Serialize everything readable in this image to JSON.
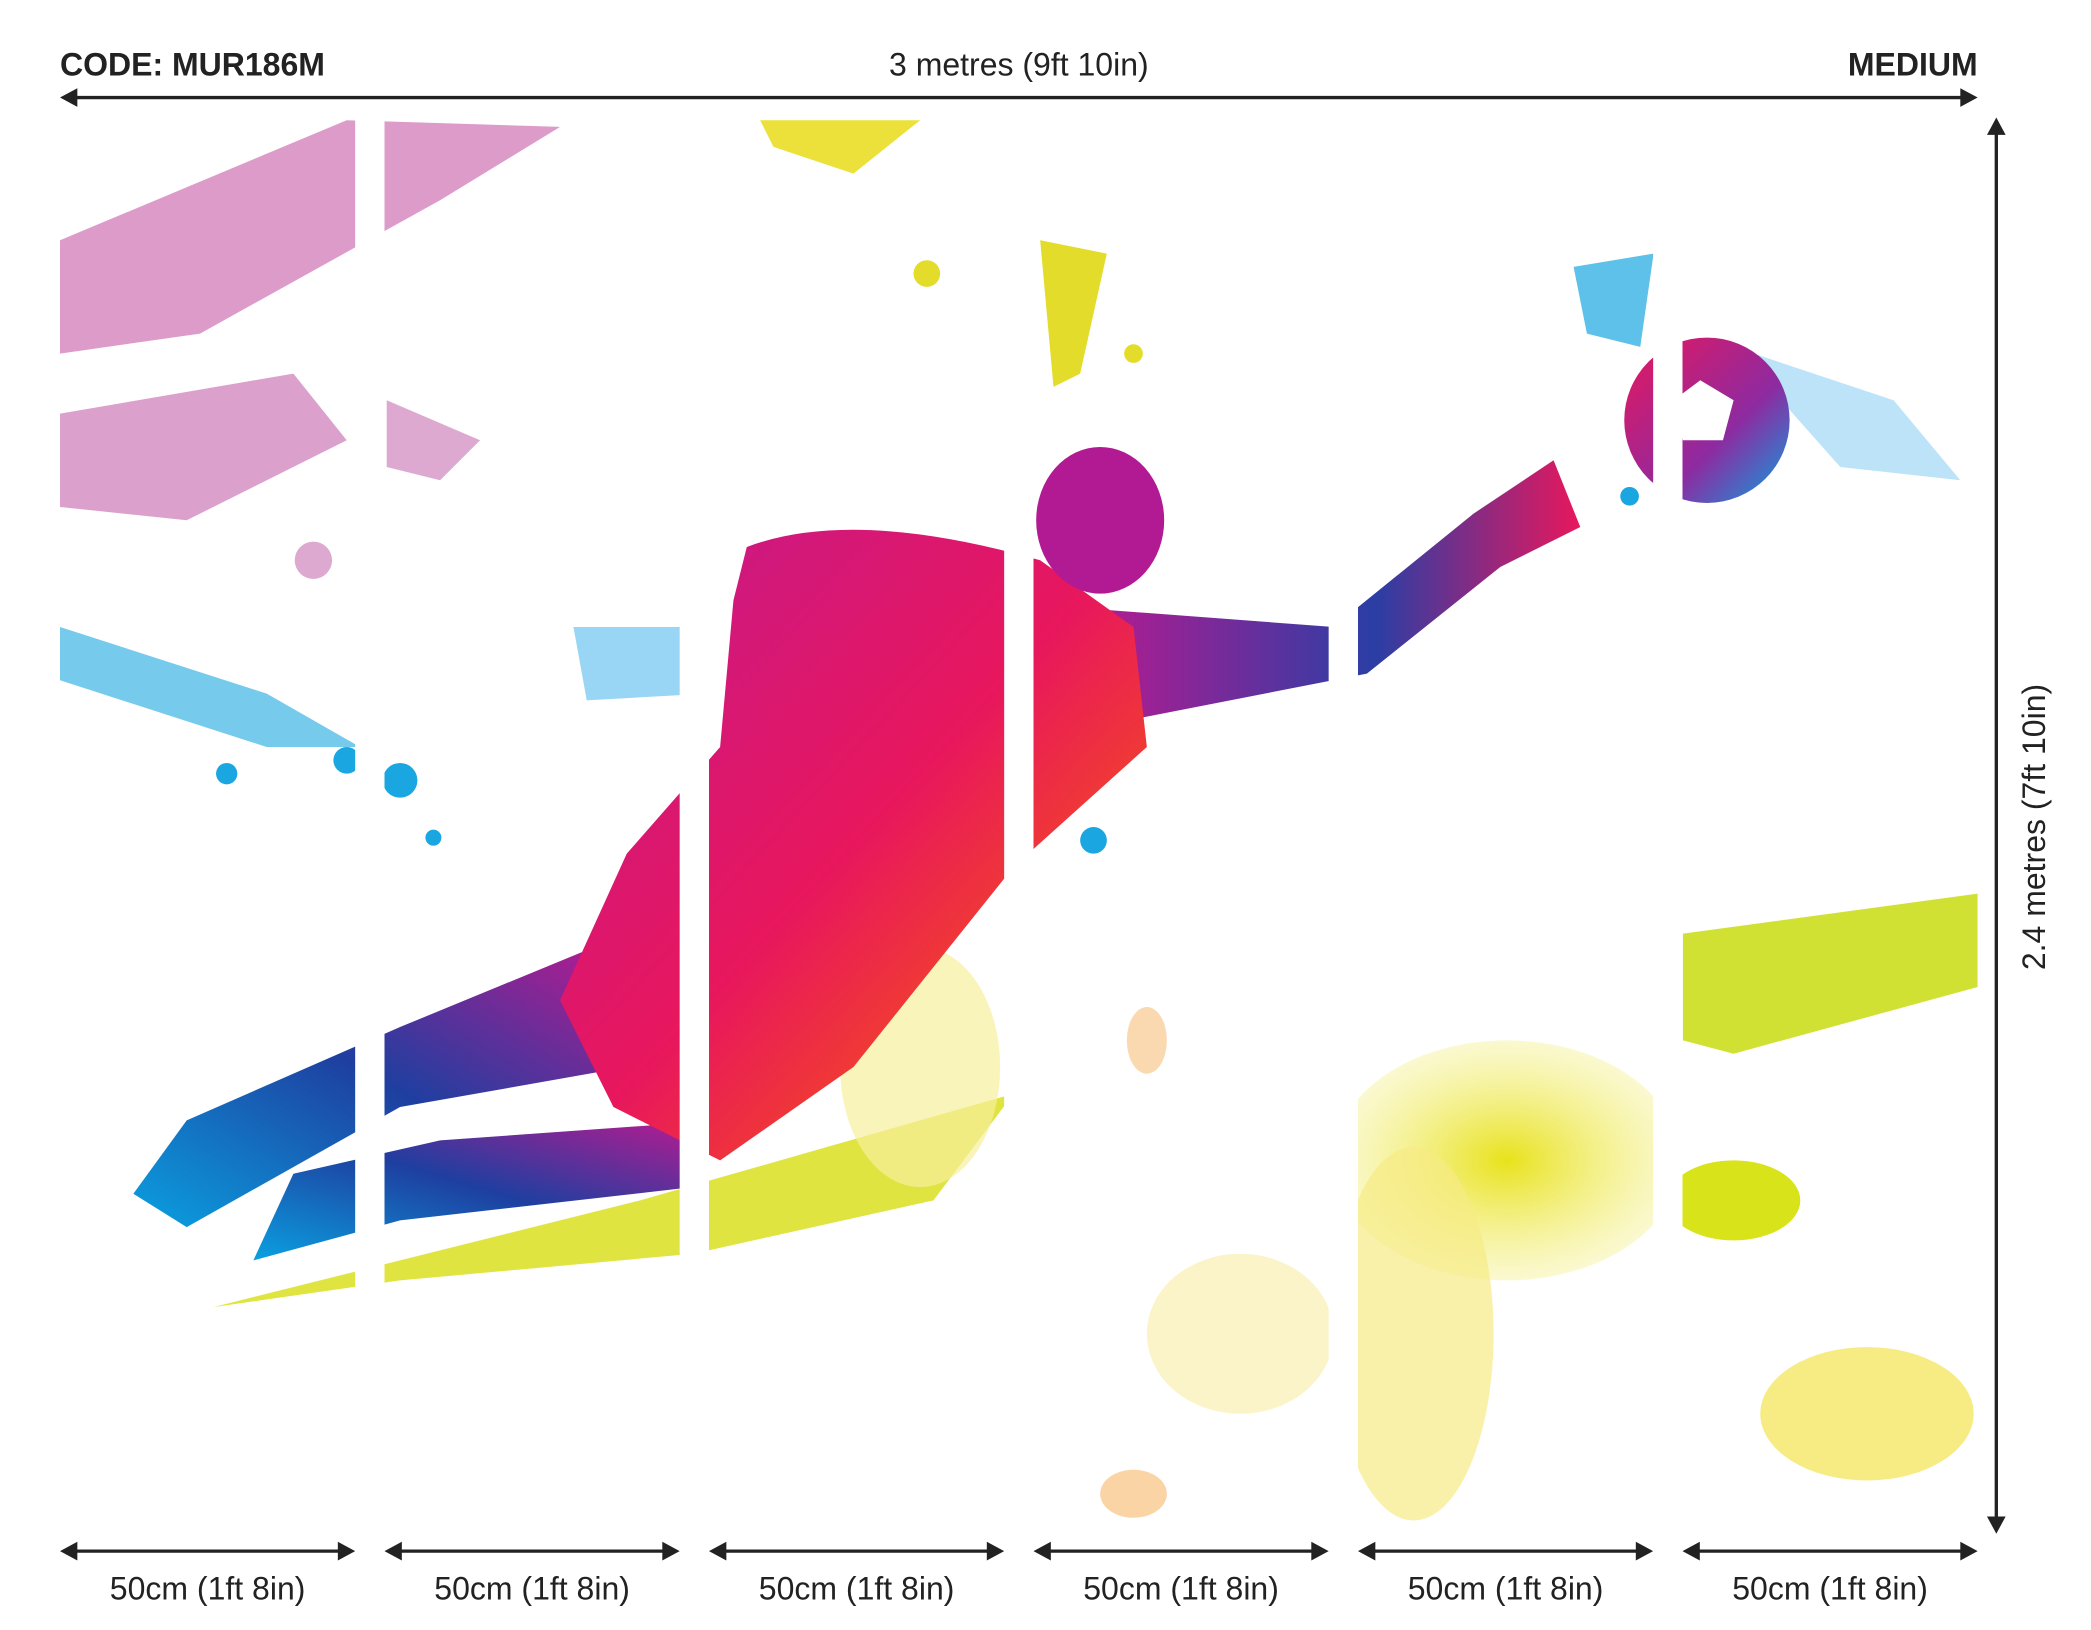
{
  "code": "CODE: MUR186M",
  "width_label": "3 metres (9ft 10in)",
  "size": "MEDIUM",
  "height_label": "2.4 metres (7ft 10in)",
  "panels": [
    "50cm (1ft 8in)",
    "50cm (1ft 8in)",
    "50cm (1ft 8in)",
    "50cm (1ft 8in)",
    "50cm (1ft 8in)",
    "50cm (1ft 8in)"
  ]
}
